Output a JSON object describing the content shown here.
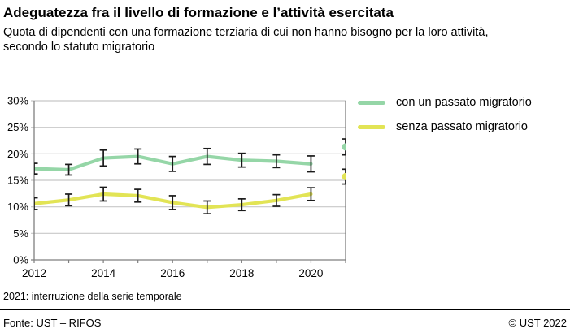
{
  "header": {
    "title": "Adeguatezza fra il livello di formazione e l’attività esercitata",
    "subtitle": "Quota di dipendenti con una formazione terziaria di cui non hanno bisogno per la loro attività, secondo lo statuto migratorio"
  },
  "note": {
    "text": "2021: interruzione della serie temporale"
  },
  "footer": {
    "source": "Fonte: UST – RIFOS",
    "copyright": "© UST 2022"
  },
  "chart_data": {
    "type": "line",
    "x": [
      2012,
      2013,
      2014,
      2015,
      2016,
      2017,
      2018,
      2019,
      2020,
      2021
    ],
    "x_tick_labels": [
      "2012",
      "2014",
      "2016",
      "2018",
      "2020"
    ],
    "x_labeled_years": [
      2012,
      2014,
      2016,
      2018,
      2020
    ],
    "ylim": [
      0,
      30
    ],
    "y_ticks": [
      0,
      5,
      10,
      15,
      20,
      25,
      30
    ],
    "y_tick_suffix": "%",
    "grid": true,
    "legend_position": "right-top",
    "error_bars": true,
    "break_year": 2021,
    "break_note": "2021 plotted as detached points at the right axis (time-series interruption)",
    "series": [
      {
        "name": "con un passato migratorio",
        "color": "#95d6a7",
        "values": [
          17.2,
          17.0,
          19.2,
          19.5,
          18.1,
          19.5,
          18.8,
          18.6,
          18.1,
          21.3
        ],
        "err": [
          1.0,
          1.0,
          1.5,
          1.4,
          1.4,
          1.5,
          1.3,
          1.2,
          1.5,
          1.5
        ]
      },
      {
        "name": "senza passato migratorio",
        "color": "#e2e455",
        "values": [
          10.6,
          11.3,
          12.4,
          12.1,
          10.8,
          9.9,
          10.4,
          11.2,
          12.4,
          15.7
        ],
        "err": [
          1.1,
          1.1,
          1.3,
          1.2,
          1.3,
          1.2,
          1.1,
          1.1,
          1.2,
          1.4
        ]
      }
    ],
    "colors": {
      "grid": "#c8c8c8",
      "axis": "#7f7f7f",
      "error_bar": "#1a1a1a"
    }
  }
}
